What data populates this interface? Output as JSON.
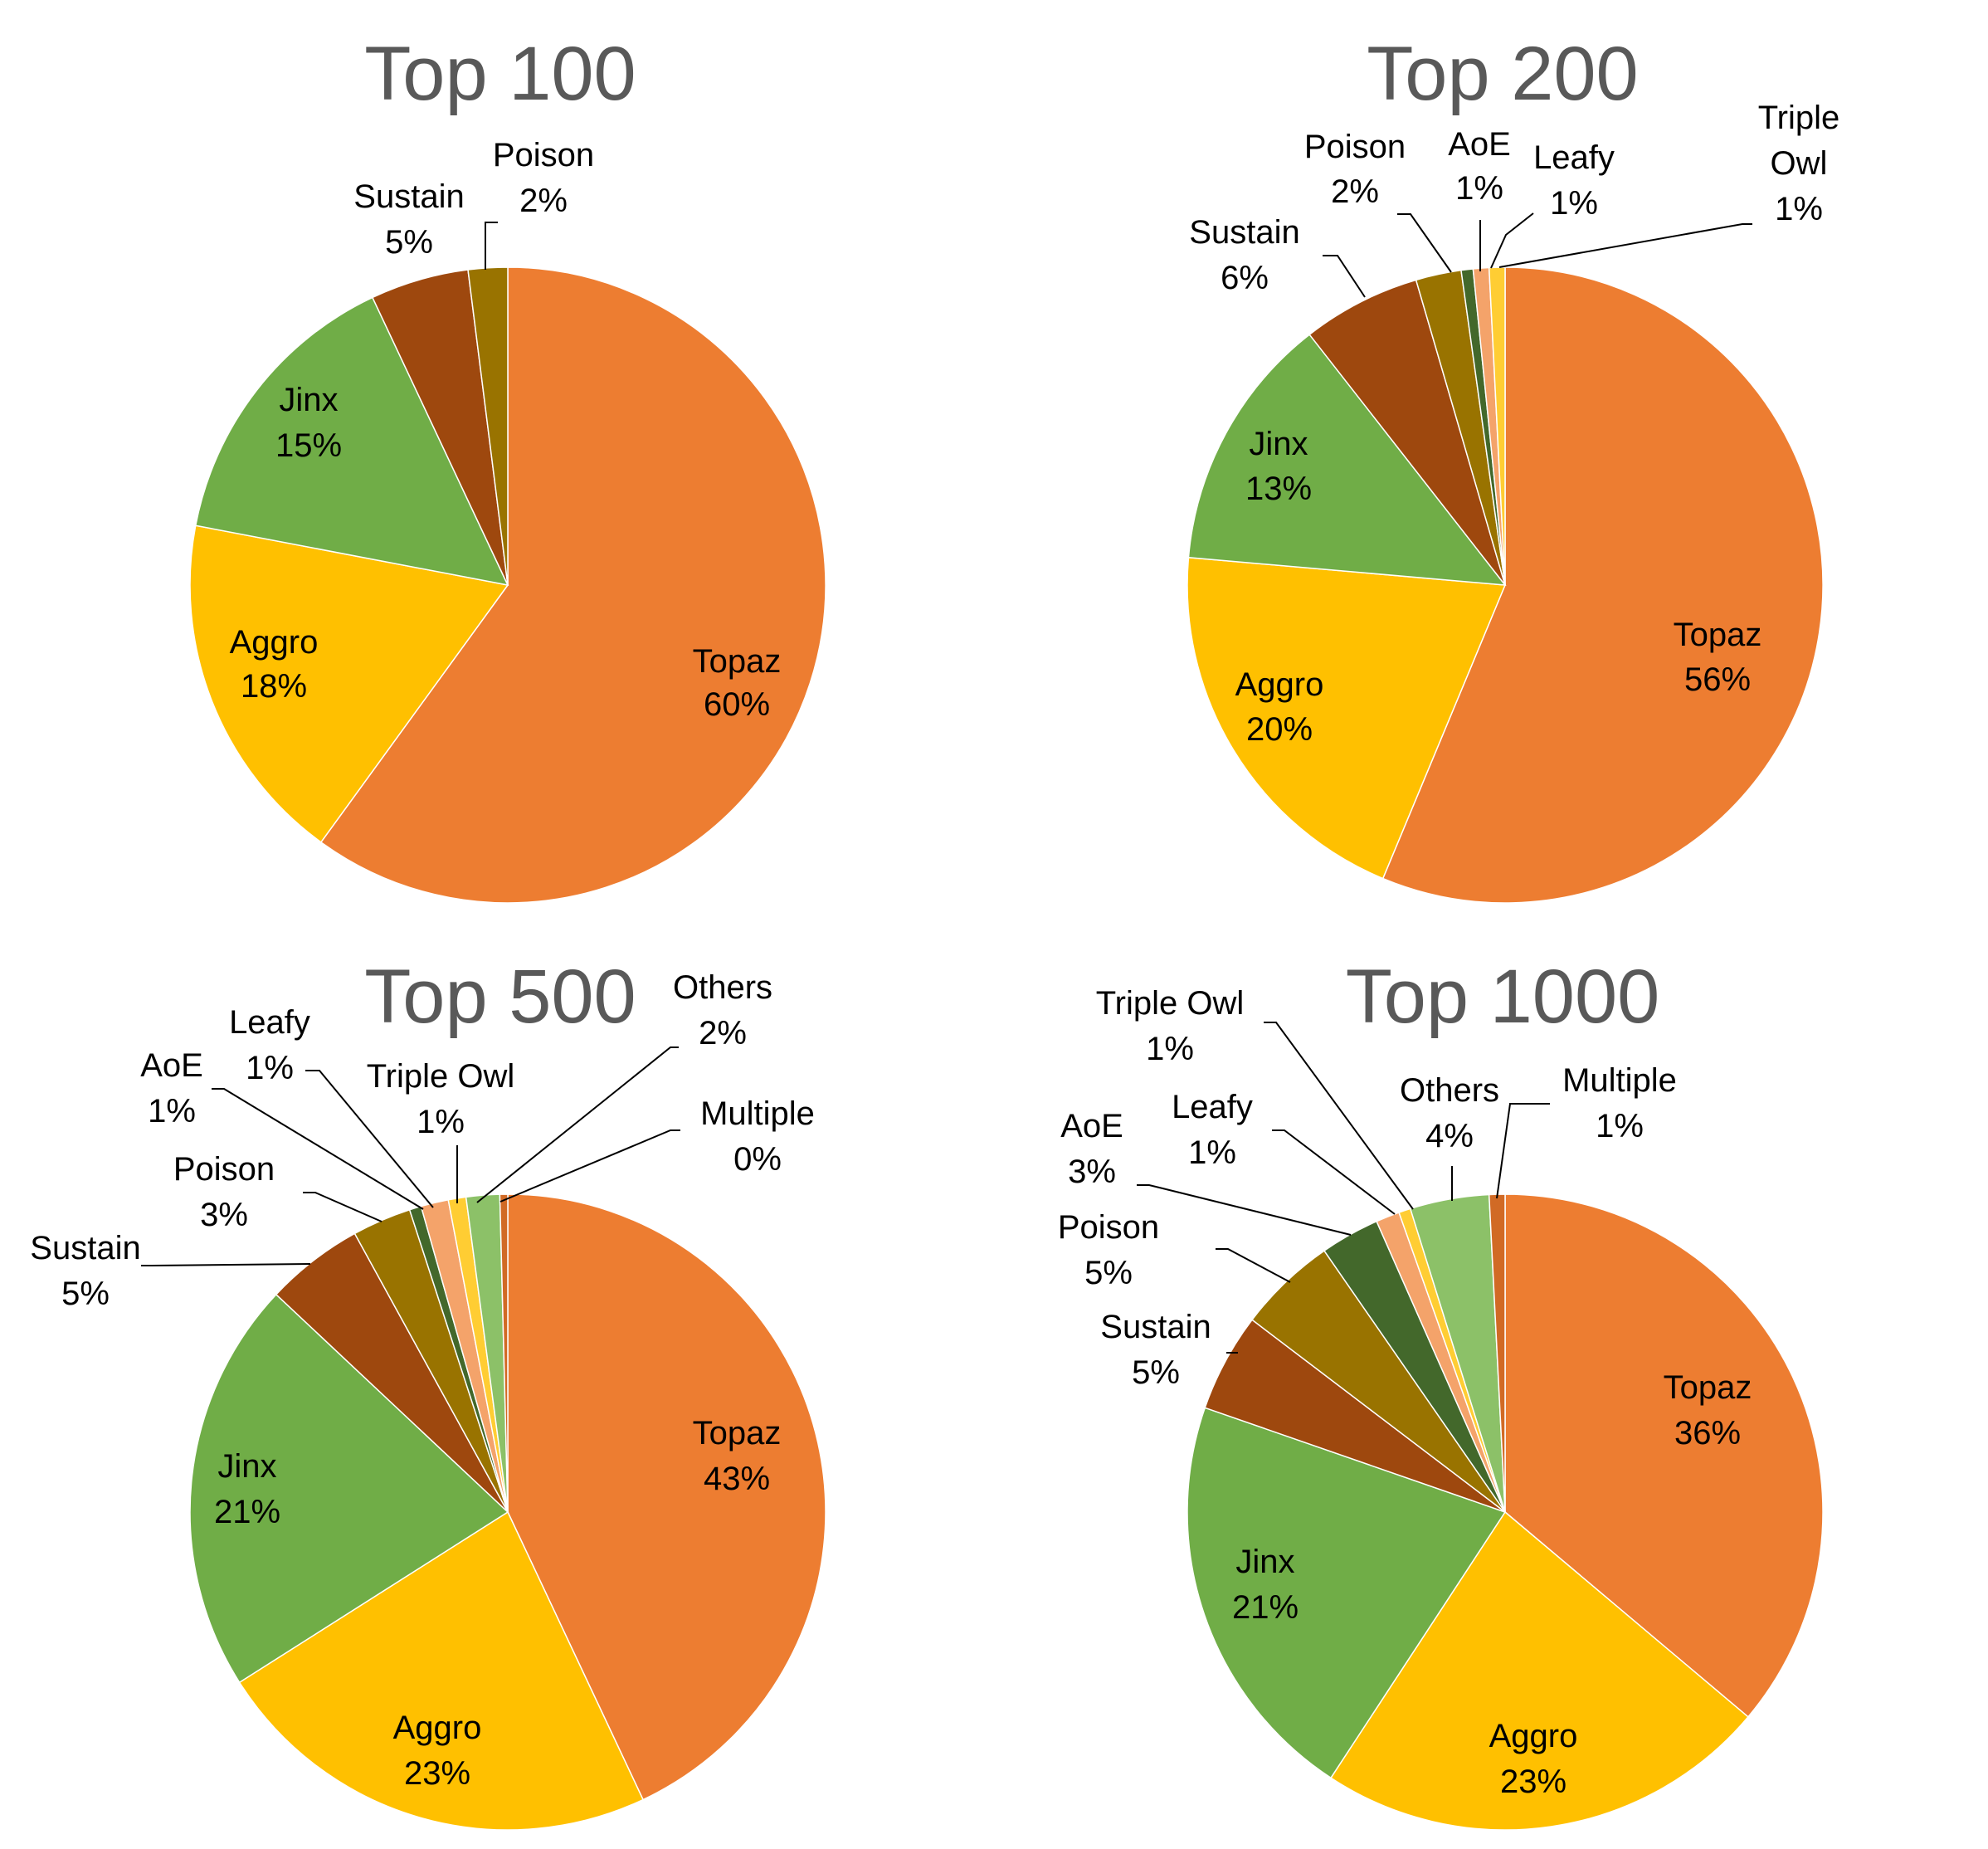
{
  "colors": {
    "Topaz": "#ED7D31",
    "Aggro": "#FFC000",
    "Jinx": "#70AD47",
    "Sustain": "#9E480E",
    "Poison": "#997300",
    "AoE": "#43682B",
    "Leafy": "#F4A36A",
    "Triple Owl": "#FFCD33",
    "Others": "#8CC168",
    "Multiple": "#D16A25"
  },
  "chart_data": [
    {
      "type": "pie",
      "title": "Top 100",
      "slices": [
        {
          "label": "Topaz",
          "value": 60,
          "text": "60%"
        },
        {
          "label": "Aggro",
          "value": 18,
          "text": "18%"
        },
        {
          "label": "Jinx",
          "value": 15,
          "text": "15%"
        },
        {
          "label": "Sustain",
          "value": 5,
          "text": "5%"
        },
        {
          "label": "Poison",
          "value": 2,
          "text": "2%"
        }
      ]
    },
    {
      "type": "pie",
      "title": "Top 200",
      "slices": [
        {
          "label": "Topaz",
          "value": 56,
          "text": "56%"
        },
        {
          "label": "Aggro",
          "value": 20,
          "text": "20%"
        },
        {
          "label": "Jinx",
          "value": 13,
          "text": "13%"
        },
        {
          "label": "Sustain",
          "value": 6,
          "text": "6%"
        },
        {
          "label": "Poison",
          "value": 2.3,
          "text": "2%"
        },
        {
          "label": "AoE",
          "value": 0.6,
          "text": "1%"
        },
        {
          "label": "Leafy",
          "value": 0.8,
          "text": "1%"
        },
        {
          "label": "Triple Owl",
          "value": 0.8,
          "text": "1%"
        }
      ]
    },
    {
      "type": "pie",
      "title": "Top 500",
      "slices": [
        {
          "label": "Topaz",
          "value": 43,
          "text": "43%"
        },
        {
          "label": "Aggro",
          "value": 23,
          "text": "23%"
        },
        {
          "label": "Jinx",
          "value": 21,
          "text": "21%"
        },
        {
          "label": "Sustain",
          "value": 5,
          "text": "5%"
        },
        {
          "label": "Poison",
          "value": 3,
          "text": "3%"
        },
        {
          "label": "AoE",
          "value": 0.6,
          "text": "1%"
        },
        {
          "label": "Leafy",
          "value": 1.4,
          "text": "1%"
        },
        {
          "label": "Triple Owl",
          "value": 0.9,
          "text": "1%"
        },
        {
          "label": "Others",
          "value": 1.7,
          "text": "2%"
        },
        {
          "label": "Multiple",
          "value": 0.4,
          "text": "0%"
        }
      ]
    },
    {
      "type": "pie",
      "title": "Top 1000",
      "slices": [
        {
          "label": "Topaz",
          "value": 36,
          "text": "36%"
        },
        {
          "label": "Aggro",
          "value": 23,
          "text": "23%"
        },
        {
          "label": "Jinx",
          "value": 21,
          "text": "21%"
        },
        {
          "label": "Sustain",
          "value": 5,
          "text": "5%"
        },
        {
          "label": "Poison",
          "value": 5,
          "text": "5%"
        },
        {
          "label": "AoE",
          "value": 3,
          "text": "3%"
        },
        {
          "label": "Leafy",
          "value": 1.2,
          "text": "1%"
        },
        {
          "label": "Triple Owl",
          "value": 0.6,
          "text": "1%"
        },
        {
          "label": "Others",
          "value": 4,
          "text": "4%"
        },
        {
          "label": "Multiple",
          "value": 0.8,
          "text": "1%"
        }
      ]
    }
  ]
}
